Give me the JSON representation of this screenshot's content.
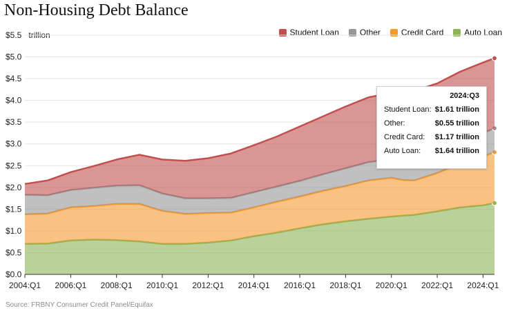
{
  "title": "Non-Housing Debt Balance",
  "unit_label": "trillion",
  "source": "Source: FRBNY Consumer Credit Panel/Equifax",
  "legend": [
    {
      "name": "Student Loan",
      "color": "#c0504d"
    },
    {
      "name": "Other",
      "color": "#969696"
    },
    {
      "name": "Credit Card",
      "color": "#f79a2e"
    },
    {
      "name": "Auto Loan",
      "color": "#8db356"
    }
  ],
  "tooltip": {
    "period": "2024:Q3",
    "rows": [
      {
        "label": "Student Loan:",
        "value": "$1.61 trillion"
      },
      {
        "label": "Other:",
        "value": "$0.55 trillion"
      },
      {
        "label": "Credit Card:",
        "value": "$1.17 trillion"
      },
      {
        "label": "Auto Loan:",
        "value": "$1.64 trillion"
      }
    ]
  },
  "chart_data": {
    "type": "area",
    "stacked": true,
    "title": "Non-Housing Debt Balance",
    "ylabel": "trillion",
    "ylim": [
      0,
      5.5
    ],
    "y_ticks": [
      "$0.0",
      "$0.5",
      "$1.0",
      "$1.5",
      "$2.0",
      "$2.5",
      "$3.0",
      "$3.5",
      "$4.0",
      "$4.5",
      "$5.0",
      "$5.5"
    ],
    "x_tick_labels": [
      "2004:Q1",
      "2006:Q1",
      "2008:Q1",
      "2010:Q1",
      "2012:Q1",
      "2014:Q1",
      "2016:Q1",
      "2018:Q1",
      "2020:Q1",
      "2022:Q1",
      "2024:Q1"
    ],
    "x_years": [
      2004.0,
      2005.0,
      2006.0,
      2007.0,
      2008.0,
      2009.0,
      2010.0,
      2011.0,
      2012.0,
      2013.0,
      2014.0,
      2015.0,
      2016.0,
      2017.0,
      2018.0,
      2019.0,
      2020.0,
      2020.5,
      2021.0,
      2022.0,
      2023.0,
      2024.0,
      2024.5
    ],
    "grid": true,
    "legend_position": "top-right",
    "series": [
      {
        "name": "Auto Loan",
        "color": "#8db356",
        "values": [
          0.7,
          0.71,
          0.78,
          0.8,
          0.79,
          0.76,
          0.7,
          0.7,
          0.73,
          0.78,
          0.88,
          0.96,
          1.06,
          1.15,
          1.22,
          1.28,
          1.33,
          1.35,
          1.37,
          1.45,
          1.54,
          1.59,
          1.64
        ]
      },
      {
        "name": "Credit Card",
        "color": "#f79a2e",
        "values": [
          0.68,
          0.69,
          0.76,
          0.77,
          0.83,
          0.86,
          0.76,
          0.69,
          0.68,
          0.64,
          0.66,
          0.71,
          0.73,
          0.77,
          0.81,
          0.88,
          0.89,
          0.82,
          0.79,
          0.88,
          1.01,
          1.12,
          1.17
        ]
      },
      {
        "name": "Other",
        "color": "#969696",
        "values": [
          0.45,
          0.42,
          0.4,
          0.42,
          0.42,
          0.43,
          0.4,
          0.36,
          0.34,
          0.34,
          0.35,
          0.35,
          0.36,
          0.38,
          0.41,
          0.42,
          0.43,
          0.45,
          0.46,
          0.48,
          0.52,
          0.54,
          0.55
        ]
      },
      {
        "name": "Student Loan",
        "color": "#c0504d",
        "values": [
          0.25,
          0.34,
          0.41,
          0.5,
          0.6,
          0.7,
          0.78,
          0.86,
          0.92,
          1.02,
          1.08,
          1.15,
          1.25,
          1.33,
          1.42,
          1.49,
          1.52,
          1.57,
          1.6,
          1.58,
          1.59,
          1.62,
          1.61
        ]
      }
    ]
  }
}
